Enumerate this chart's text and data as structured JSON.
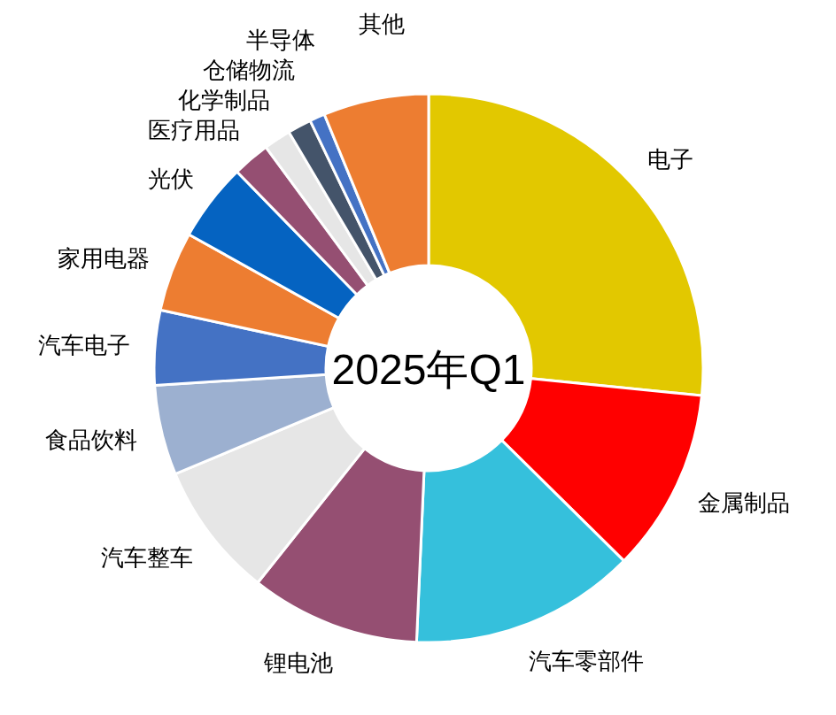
{
  "chart_data": {
    "type": "donut",
    "title": "2025年Q1",
    "categories": [
      "电子",
      "金属制品",
      "汽车零部件",
      "锂电池",
      "汽车整车",
      "食品饮料",
      "汽车电子",
      "家用电器",
      "光伏",
      "医疗用品",
      "化学制品",
      "仓储物流",
      "半导体",
      "其他"
    ],
    "values": [
      26.6,
      10.8,
      13.3,
      10,
      8,
      5.3,
      4.4,
      4.7,
      4.6,
      2.2,
      1.6,
      1.4,
      0.9,
      6.2
    ],
    "colors": [
      "#e2c800",
      "#ff0000",
      "#35c0dc",
      "#954f72",
      "#e6e6e6",
      "#9cb0d0",
      "#4472c4",
      "#ed7d31",
      "#0563c1",
      "#954f72",
      "#e6e6e6",
      "#44546a",
      "#4472c4",
      "#ed7d31"
    ],
    "legend": false
  }
}
